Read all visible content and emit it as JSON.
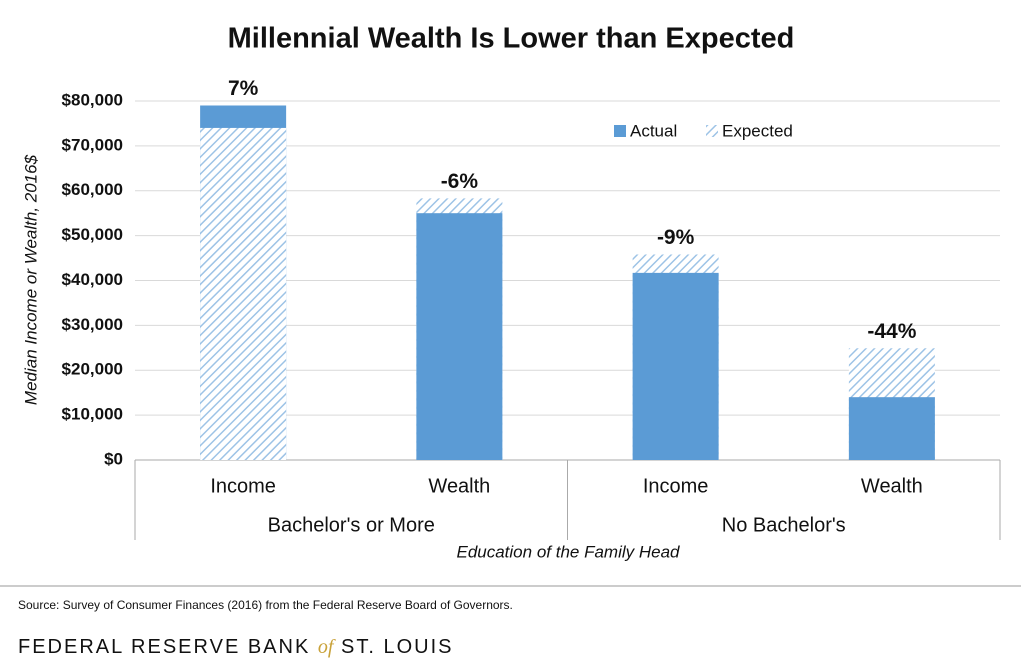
{
  "chart_data": {
    "type": "bar",
    "title": "Millennial Wealth Is Lower than Expected",
    "y_label": "Median Income or Wealth, 2016$",
    "x_label": "Education of the Family Head",
    "categories": [
      "Income",
      "Wealth",
      "Income",
      "Wealth"
    ],
    "groups": [
      "Bachelor's or More",
      "No Bachelor's"
    ],
    "series": [
      {
        "name": "Actual",
        "color": "#5b9bd5",
        "values": [
          79000,
          55000,
          41700,
          14000
        ]
      },
      {
        "name": "Expected",
        "color": "#9dc3e6",
        "values": [
          74000,
          58300,
          45800,
          24900
        ]
      }
    ],
    "annotations": [
      "7%",
      "-6%",
      "-9%",
      "-44%"
    ],
    "ylim": [
      0,
      80000
    ],
    "yticks": [
      {
        "value": 0,
        "label": "$0"
      },
      {
        "value": 10000,
        "label": "$10,000"
      },
      {
        "value": 20000,
        "label": "$20,000"
      },
      {
        "value": 30000,
        "label": "$30,000"
      },
      {
        "value": 40000,
        "label": "$40,000"
      },
      {
        "value": 50000,
        "label": "$50,000"
      },
      {
        "value": 60000,
        "label": "$60,000"
      },
      {
        "value": 70000,
        "label": "$70,000"
      },
      {
        "value": 80000,
        "label": "$80,000"
      }
    ],
    "grid": true
  },
  "footer": {
    "source": "Source: Survey of Consumer Finances (2016) from the Federal Reserve Board of Governors.",
    "brand": [
      "FEDERAL RESERVE BANK",
      "of",
      "ST. LOUIS"
    ]
  }
}
